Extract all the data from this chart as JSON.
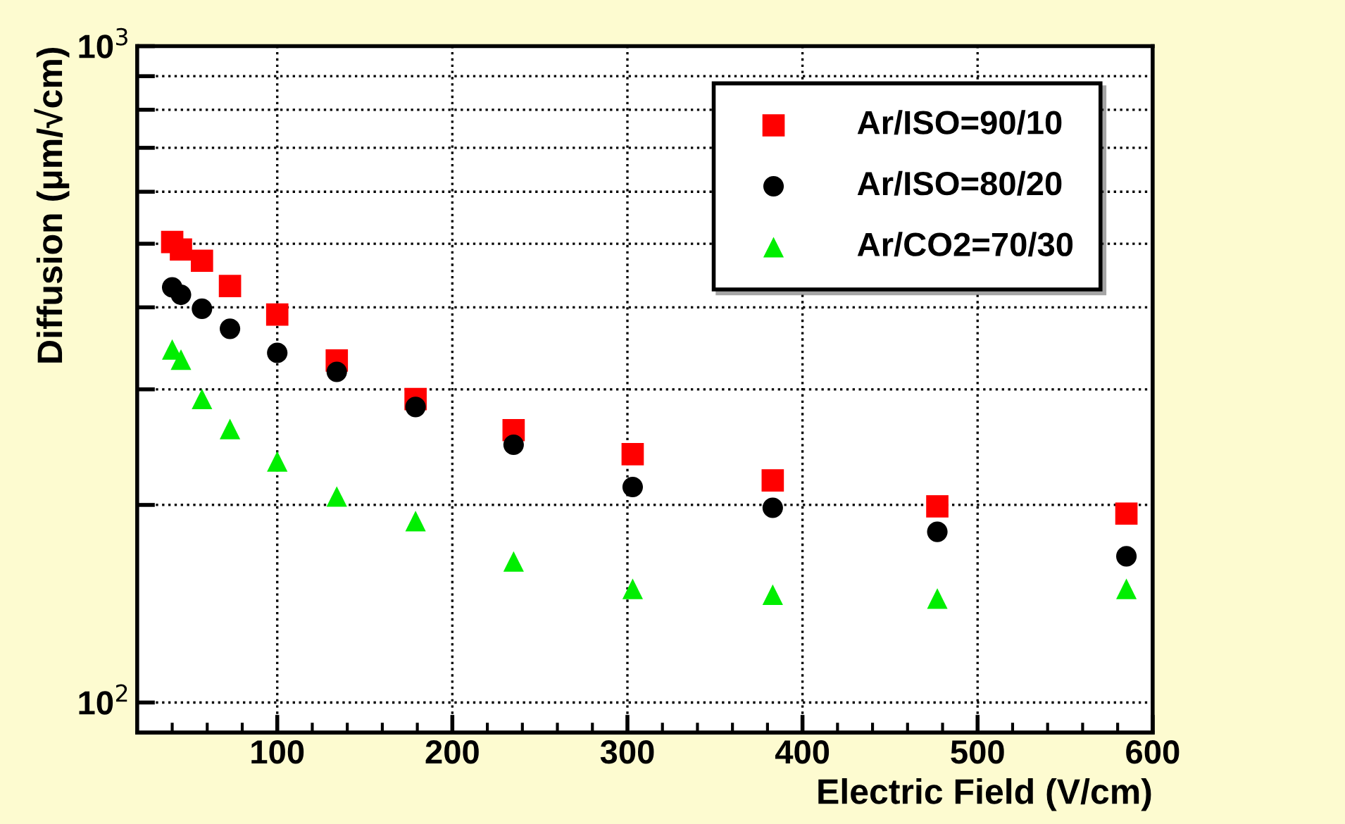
{
  "chart_data": {
    "type": "scatter",
    "xlabel": "Electric Field (V/cm)",
    "ylabel": "Diffusion (μm/√cm)",
    "x": [
      40,
      45,
      57,
      73,
      100,
      134,
      179,
      235,
      303,
      383,
      477,
      585
    ],
    "series": [
      {
        "name": "Ar/ISO=90/10",
        "color": "#ff0000",
        "marker": "square",
        "values": [
          503,
          490,
          471,
          431,
          390,
          332,
          290,
          260,
          239,
          218,
          199,
          194
        ]
      },
      {
        "name": "Ar/ISO=80/20",
        "color": "#000000",
        "marker": "circle",
        "values": [
          429,
          418,
          398,
          371,
          341,
          319,
          282,
          247,
          213,
          198,
          182,
          167
        ]
      },
      {
        "name": "Ar/CO2=70/30",
        "color": "#00ee00",
        "marker": "triangle",
        "values": [
          345,
          333,
          290,
          261,
          233,
          206,
          189,
          164,
          149,
          146,
          144,
          149
        ]
      }
    ],
    "log": "y",
    "xlim": [
      20,
      600
    ],
    "xticks": [
      100,
      200,
      300,
      400,
      500,
      600
    ],
    "ylim": [
      90,
      1000
    ],
    "yticks": [
      {
        "value": 100,
        "label": "10$^{2}$"
      },
      {
        "value": 200,
        "label": null
      },
      {
        "value": 300,
        "label": null
      },
      {
        "value": 400,
        "label": null
      },
      {
        "value": 500,
        "label": null
      },
      {
        "value": 600,
        "label": null
      },
      {
        "value": 700,
        "label": null
      },
      {
        "value": 800,
        "label": null
      },
      {
        "value": 900,
        "label": null
      },
      {
        "value": 1000,
        "label": "10$^{3}$"
      }
    ],
    "grid": true,
    "legend": "top right"
  }
}
